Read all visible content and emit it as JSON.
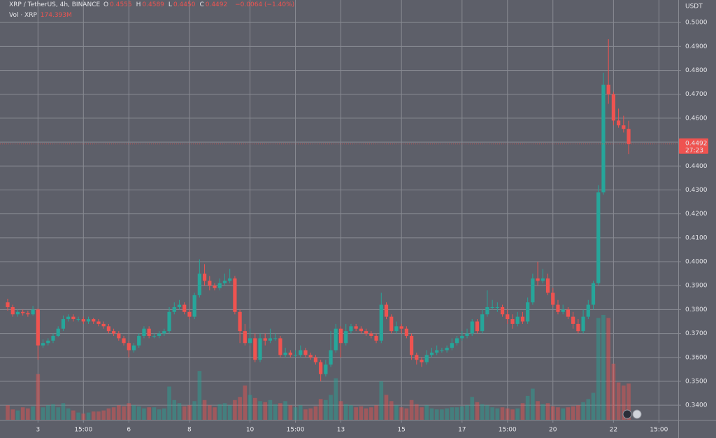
{
  "chart_data": {
    "type": "candlestick",
    "legend": {
      "title": "XRP / TetherUS, 4h, BINANCE",
      "fields": [
        {
          "key": "O",
          "value": "0.4555"
        },
        {
          "key": "H",
          "value": "0.4589"
        },
        {
          "key": "L",
          "value": "0.4450"
        },
        {
          "key": "C",
          "value": "0.4492"
        }
      ],
      "change": "−0.0064 (−1.40%)",
      "volume_title": "Vol · XRP",
      "volume_value": "174.393M"
    },
    "y_axis_label": "USDT",
    "last_price_label": "0.4492",
    "countdown": "27:23",
    "up_color": "#26a69a",
    "down_color": "#ef5350",
    "grid": true,
    "ylim": [
      0.3339,
      0.5094
    ],
    "yticks": [
      {
        "value": 0.34,
        "label": "0.3400"
      },
      {
        "value": 0.35,
        "label": "0.3500"
      },
      {
        "value": 0.36,
        "label": "0.3600"
      },
      {
        "value": 0.37,
        "label": "0.3700"
      },
      {
        "value": 0.38,
        "label": "0.3800"
      },
      {
        "value": 0.39,
        "label": "0.3900"
      },
      {
        "value": 0.4,
        "label": "0.4000"
      },
      {
        "value": 0.41,
        "label": "0.4100"
      },
      {
        "value": 0.42,
        "label": "0.4200"
      },
      {
        "value": 0.43,
        "label": "0.4300"
      },
      {
        "value": 0.44,
        "label": "0.4400"
      },
      {
        "value": 0.45,
        "label": "0.4500"
      },
      {
        "value": 0.46,
        "label": "0.4600"
      },
      {
        "value": 0.47,
        "label": "0.4700"
      },
      {
        "value": 0.48,
        "label": "0.4800"
      },
      {
        "value": 0.49,
        "label": "0.4900"
      },
      {
        "value": 0.5,
        "label": "0.5000"
      }
    ],
    "xticks": [
      {
        "value": 6,
        "label": "3"
      },
      {
        "value": 15,
        "label": "15:00"
      },
      {
        "value": 24,
        "label": "6"
      },
      {
        "value": 36,
        "label": "8"
      },
      {
        "value": 48,
        "label": "10"
      },
      {
        "value": 57,
        "label": "15:00"
      },
      {
        "value": 66,
        "label": "13"
      },
      {
        "value": 78,
        "label": "15"
      },
      {
        "value": 90,
        "label": "17"
      },
      {
        "value": 99,
        "label": "15:00"
      },
      {
        "value": 108,
        "label": "20"
      },
      {
        "value": 120,
        "label": "22"
      },
      {
        "value": 129,
        "label": "15:00"
      }
    ],
    "open": [
      0.383,
      0.381,
      0.378,
      0.379,
      0.3785,
      0.378,
      0.38,
      0.365,
      0.366,
      0.367,
      0.369,
      0.372,
      0.376,
      0.377,
      0.376,
      0.376,
      0.375,
      0.376,
      0.375,
      0.374,
      0.373,
      0.371,
      0.37,
      0.368,
      0.366,
      0.363,
      0.365,
      0.369,
      0.372,
      0.369,
      0.369,
      0.37,
      0.371,
      0.379,
      0.381,
      0.382,
      0.379,
      0.377,
      0.386,
      0.395,
      0.392,
      0.39,
      0.389,
      0.391,
      0.392,
      0.393,
      0.379,
      0.371,
      0.366,
      0.368,
      0.359,
      0.368,
      0.367,
      0.368,
      0.368,
      0.361,
      0.362,
      0.361,
      0.361,
      0.363,
      0.361,
      0.36,
      0.358,
      0.353,
      0.357,
      0.363,
      0.372,
      0.366,
      0.371,
      0.373,
      0.372,
      0.371,
      0.37,
      0.369,
      0.367,
      0.382,
      0.377,
      0.371,
      0.373,
      0.372,
      0.369,
      0.361,
      0.359,
      0.358,
      0.361,
      0.362,
      0.363,
      0.363,
      0.364,
      0.366,
      0.368,
      0.369,
      0.37,
      0.375,
      0.371,
      0.378,
      0.381,
      0.381,
      0.381,
      0.378,
      0.376,
      0.374,
      0.377,
      0.375,
      0.383,
      0.393,
      0.392,
      0.393,
      0.387,
      0.382,
      0.379,
      0.38,
      0.377,
      0.374,
      0.371,
      0.377,
      0.382,
      0.391,
      0.429,
      0.474,
      0.47,
      0.459,
      0.457,
      0.4555
    ],
    "high": [
      0.3845,
      0.382,
      0.38,
      0.38,
      0.3795,
      0.3815,
      0.3805,
      0.3675,
      0.368,
      0.37,
      0.373,
      0.3775,
      0.378,
      0.378,
      0.377,
      0.377,
      0.377,
      0.3765,
      0.376,
      0.375,
      0.374,
      0.372,
      0.371,
      0.369,
      0.367,
      0.366,
      0.37,
      0.373,
      0.373,
      0.37,
      0.371,
      0.372,
      0.381,
      0.383,
      0.384,
      0.383,
      0.38,
      0.387,
      0.401,
      0.399,
      0.394,
      0.391,
      0.393,
      0.395,
      0.397,
      0.394,
      0.38,
      0.374,
      0.372,
      0.37,
      0.37,
      0.37,
      0.372,
      0.37,
      0.369,
      0.364,
      0.363,
      0.363,
      0.365,
      0.364,
      0.362,
      0.361,
      0.359,
      0.359,
      0.371,
      0.374,
      0.373,
      0.374,
      0.374,
      0.374,
      0.373,
      0.372,
      0.371,
      0.37,
      0.387,
      0.383,
      0.378,
      0.375,
      0.374,
      0.373,
      0.37,
      0.362,
      0.36,
      0.363,
      0.364,
      0.365,
      0.364,
      0.365,
      0.368,
      0.369,
      0.371,
      0.372,
      0.376,
      0.376,
      0.38,
      0.388,
      0.384,
      0.383,
      0.382,
      0.38,
      0.378,
      0.379,
      0.379,
      0.385,
      0.395,
      0.4,
      0.397,
      0.395,
      0.389,
      0.384,
      0.382,
      0.381,
      0.379,
      0.376,
      0.38,
      0.384,
      0.392,
      0.432,
      0.479,
      0.493,
      0.471,
      0.464,
      0.461,
      0.4589
    ],
    "low": [
      0.3795,
      0.377,
      0.377,
      0.3775,
      0.377,
      0.3775,
      0.359,
      0.364,
      0.365,
      0.366,
      0.3685,
      0.371,
      0.375,
      0.375,
      0.375,
      0.374,
      0.374,
      0.374,
      0.373,
      0.372,
      0.37,
      0.369,
      0.367,
      0.365,
      0.36,
      0.362,
      0.364,
      0.368,
      0.368,
      0.368,
      0.368,
      0.369,
      0.37,
      0.378,
      0.38,
      0.378,
      0.376,
      0.376,
      0.385,
      0.39,
      0.388,
      0.388,
      0.388,
      0.39,
      0.391,
      0.378,
      0.366,
      0.365,
      0.365,
      0.358,
      0.358,
      0.365,
      0.366,
      0.367,
      0.36,
      0.36,
      0.36,
      0.36,
      0.36,
      0.36,
      0.359,
      0.357,
      0.35,
      0.352,
      0.356,
      0.362,
      0.36,
      0.365,
      0.37,
      0.371,
      0.37,
      0.369,
      0.368,
      0.366,
      0.366,
      0.376,
      0.37,
      0.37,
      0.37,
      0.368,
      0.359,
      0.357,
      0.356,
      0.357,
      0.36,
      0.361,
      0.362,
      0.362,
      0.363,
      0.365,
      0.367,
      0.368,
      0.369,
      0.37,
      0.37,
      0.377,
      0.38,
      0.379,
      0.377,
      0.374,
      0.372,
      0.373,
      0.374,
      0.374,
      0.382,
      0.39,
      0.391,
      0.386,
      0.381,
      0.378,
      0.378,
      0.376,
      0.372,
      0.37,
      0.37,
      0.376,
      0.38,
      0.39,
      0.428,
      0.466,
      0.457,
      0.456,
      0.454,
      0.445
    ],
    "close": [
      0.381,
      0.378,
      0.379,
      0.3785,
      0.378,
      0.38,
      0.365,
      0.366,
      0.367,
      0.369,
      0.372,
      0.376,
      0.377,
      0.376,
      0.376,
      0.375,
      0.376,
      0.375,
      0.374,
      0.373,
      0.371,
      0.37,
      0.368,
      0.366,
      0.363,
      0.365,
      0.369,
      0.372,
      0.369,
      0.369,
      0.37,
      0.371,
      0.379,
      0.381,
      0.382,
      0.379,
      0.377,
      0.386,
      0.395,
      0.392,
      0.39,
      0.389,
      0.391,
      0.392,
      0.393,
      0.379,
      0.371,
      0.366,
      0.368,
      0.359,
      0.368,
      0.367,
      0.368,
      0.368,
      0.361,
      0.362,
      0.361,
      0.361,
      0.363,
      0.361,
      0.36,
      0.358,
      0.353,
      0.357,
      0.363,
      0.372,
      0.366,
      0.371,
      0.373,
      0.372,
      0.371,
      0.37,
      0.369,
      0.367,
      0.382,
      0.377,
      0.371,
      0.373,
      0.372,
      0.369,
      0.361,
      0.359,
      0.358,
      0.361,
      0.362,
      0.363,
      0.363,
      0.364,
      0.366,
      0.368,
      0.369,
      0.37,
      0.375,
      0.371,
      0.378,
      0.381,
      0.381,
      0.381,
      0.378,
      0.376,
      0.374,
      0.377,
      0.375,
      0.383,
      0.393,
      0.392,
      0.393,
      0.387,
      0.382,
      0.379,
      0.38,
      0.377,
      0.374,
      0.371,
      0.377,
      0.382,
      0.391,
      0.429,
      0.474,
      0.47,
      0.459,
      0.457,
      0.4555,
      0.4492
    ],
    "volume": [
      70,
      50,
      45,
      60,
      55,
      65,
      220,
      60,
      70,
      75,
      60,
      80,
      55,
      45,
      35,
      30,
      35,
      40,
      40,
      45,
      55,
      60,
      70,
      65,
      80,
      70,
      65,
      55,
      60,
      60,
      50,
      55,
      160,
      95,
      80,
      65,
      70,
      90,
      235,
      95,
      70,
      60,
      75,
      80,
      70,
      95,
      110,
      165,
      120,
      105,
      90,
      85,
      95,
      75,
      80,
      90,
      70,
      60,
      70,
      50,
      55,
      65,
      100,
      95,
      120,
      200,
      90,
      75,
      70,
      60,
      65,
      55,
      60,
      70,
      185,
      120,
      90,
      70,
      60,
      55,
      95,
      75,
      60,
      70,
      55,
      50,
      50,
      55,
      60,
      60,
      65,
      70,
      110,
      85,
      75,
      70,
      60,
      55,
      60,
      55,
      50,
      55,
      80,
      115,
      150,
      90,
      75,
      80,
      65,
      60,
      55,
      60,
      65,
      70,
      85,
      100,
      130,
      490,
      505,
      490,
      270,
      180,
      165,
      174.393
    ]
  }
}
